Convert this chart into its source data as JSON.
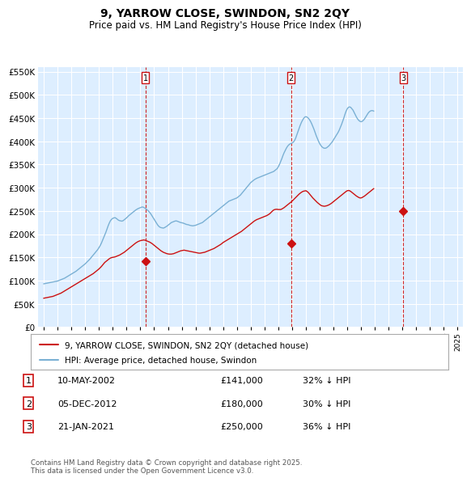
{
  "title": "9, YARROW CLOSE, SWINDON, SN2 2QY",
  "subtitle": "Price paid vs. HM Land Registry's House Price Index (HPI)",
  "background_color": "#ffffff",
  "plot_bg_color": "#ddeeff",
  "legend_label_red": "9, YARROW CLOSE, SWINDON, SN2 2QY (detached house)",
  "legend_label_blue": "HPI: Average price, detached house, Swindon",
  "footer": "Contains HM Land Registry data © Crown copyright and database right 2025.\nThis data is licensed under the Open Government Licence v3.0.",
  "transactions": [
    {
      "num": 1,
      "date": "10-MAY-2002",
      "price": "£141,000",
      "pct": "32% ↓ HPI",
      "year": 2002.36,
      "price_val": 141000
    },
    {
      "num": 2,
      "date": "05-DEC-2012",
      "price": "£180,000",
      "pct": "30% ↓ HPI",
      "year": 2012.92,
      "price_val": 180000
    },
    {
      "num": 3,
      "date": "21-JAN-2021",
      "price": "£250,000",
      "pct": "36% ↓ HPI",
      "year": 2021.06,
      "price_val": 250000
    }
  ],
  "hpi_y_monthly": [
    93000,
    93500,
    94000,
    94500,
    95000,
    95500,
    96000,
    96500,
    97000,
    97500,
    98000,
    98500,
    99000,
    100000,
    101000,
    102000,
    103000,
    104000,
    105000,
    106500,
    108000,
    109500,
    111000,
    112500,
    114000,
    115500,
    117000,
    118500,
    120000,
    122000,
    124000,
    126000,
    128000,
    130000,
    132000,
    134000,
    136000,
    138500,
    141000,
    143500,
    146000,
    149000,
    152000,
    155000,
    158000,
    161000,
    164000,
    167000,
    171000,
    175000,
    180000,
    186000,
    192000,
    198000,
    204000,
    211000,
    218000,
    224000,
    229000,
    232000,
    234000,
    235000,
    235500,
    234000,
    232000,
    230000,
    229000,
    228500,
    228000,
    229000,
    231000,
    233000,
    235000,
    237500,
    240000,
    242000,
    244000,
    246000,
    248000,
    250000,
    252000,
    253500,
    255000,
    256000,
    257000,
    258000,
    258500,
    257500,
    256000,
    254000,
    252000,
    250000,
    247000,
    244000,
    240000,
    236000,
    232000,
    228000,
    224000,
    220000,
    217000,
    215000,
    214000,
    213500,
    213000,
    214000,
    215500,
    217000,
    219000,
    221000,
    223000,
    225000,
    226000,
    227000,
    228000,
    228500,
    228000,
    227000,
    226000,
    225000,
    224500,
    224000,
    223000,
    222000,
    221000,
    220500,
    220000,
    219000,
    218500,
    218000,
    218000,
    218500,
    219000,
    220000,
    221000,
    222000,
    223000,
    224000,
    225000,
    227000,
    229000,
    231000,
    233000,
    235000,
    237000,
    239000,
    241000,
    243000,
    245000,
    247000,
    249000,
    251000,
    253000,
    255000,
    257000,
    259000,
    261000,
    263000,
    265000,
    267000,
    269000,
    271000,
    272000,
    273000,
    274000,
    275000,
    276000,
    277000,
    278000,
    280000,
    282000,
    284000,
    287000,
    290000,
    293000,
    296000,
    299000,
    302000,
    305000,
    308000,
    311000,
    313000,
    315000,
    317000,
    318500,
    320000,
    321000,
    322000,
    323000,
    324000,
    325000,
    326000,
    327000,
    328000,
    329000,
    330000,
    331000,
    332000,
    333000,
    334000,
    335000,
    337000,
    339000,
    341000,
    345000,
    350000,
    356000,
    362000,
    369000,
    375000,
    380000,
    385000,
    389000,
    392000,
    394000,
    395000,
    396000,
    398000,
    401000,
    406000,
    413000,
    420000,
    427000,
    434000,
    440000,
    445000,
    449000,
    452000,
    453000,
    452000,
    450000,
    447000,
    443000,
    438000,
    432000,
    426000,
    419000,
    412000,
    406000,
    400000,
    395000,
    391000,
    388000,
    386000,
    385000,
    385000,
    386000,
    388000,
    390000,
    393000,
    396000,
    399000,
    403000,
    407000,
    411000,
    415000,
    419000,
    424000,
    430000,
    436000,
    443000,
    450000,
    458000,
    465000,
    470000,
    473000,
    474000,
    473000,
    470000,
    467000,
    462000,
    457000,
    452000,
    448000,
    445000,
    443000,
    442000,
    443000,
    445000,
    448000,
    452000,
    456000,
    460000,
    463000,
    465000,
    466000,
    466000,
    465000
  ],
  "price_y_monthly": [
    62000,
    62500,
    63000,
    63500,
    64000,
    64500,
    65000,
    65500,
    66000,
    67000,
    68000,
    69000,
    70000,
    71000,
    72000,
    73000,
    74500,
    76000,
    77500,
    79000,
    80500,
    82000,
    83500,
    85000,
    86500,
    88000,
    89500,
    91000,
    92500,
    94000,
    95500,
    97000,
    98500,
    100000,
    101500,
    103000,
    104500,
    106000,
    107500,
    109000,
    110500,
    112000,
    113500,
    115000,
    117000,
    119000,
    121000,
    123000,
    125000,
    127500,
    130000,
    133000,
    136000,
    139000,
    141000,
    143000,
    145000,
    147000,
    148500,
    149500,
    150000,
    150500,
    151000,
    152000,
    153000,
    154000,
    155000,
    156500,
    158000,
    159500,
    161000,
    163000,
    165000,
    167000,
    169000,
    171000,
    173000,
    175000,
    177000,
    179000,
    181000,
    182500,
    184000,
    185000,
    186000,
    186500,
    187000,
    187500,
    187000,
    186000,
    185000,
    184000,
    183000,
    181500,
    180000,
    178000,
    176000,
    174000,
    172000,
    170000,
    168000,
    166000,
    164000,
    162500,
    161000,
    160000,
    159000,
    158000,
    157500,
    157000,
    157000,
    157000,
    157500,
    158000,
    159000,
    160000,
    161000,
    162000,
    163000,
    164000,
    164500,
    165000,
    165500,
    165000,
    164500,
    164000,
    163500,
    163000,
    162500,
    162000,
    161500,
    161000,
    160500,
    160000,
    159500,
    159000,
    159000,
    159500,
    160000,
    160500,
    161000,
    162000,
    163000,
    164000,
    165000,
    166000,
    167000,
    168000,
    169000,
    170500,
    172000,
    173500,
    175000,
    176500,
    178000,
    180000,
    182000,
    183500,
    185000,
    186500,
    188000,
    189500,
    191000,
    192500,
    194000,
    195500,
    197000,
    198500,
    200000,
    201500,
    203000,
    204500,
    206000,
    208000,
    210000,
    212000,
    214000,
    216000,
    218000,
    220000,
    222000,
    224000,
    226000,
    228000,
    229500,
    231000,
    232000,
    233000,
    234000,
    235000,
    236000,
    237000,
    238000,
    239000,
    240000,
    241500,
    243000,
    245000,
    247500,
    250000,
    252000,
    253000,
    253500,
    253500,
    253000,
    253000,
    253000,
    254000,
    255500,
    257000,
    259000,
    261000,
    263000,
    265000,
    267000,
    269000,
    271000,
    273500,
    276000,
    278500,
    281000,
    283500,
    286000,
    288000,
    290000,
    291500,
    292500,
    293000,
    293500,
    292000,
    290000,
    287000,
    284000,
    281000,
    278000,
    275500,
    273000,
    270500,
    268000,
    266000,
    264000,
    262000,
    261000,
    260500,
    260000,
    260500,
    261000,
    262000,
    263000,
    264500,
    266000,
    268000,
    270000,
    272000,
    274000,
    276000,
    278000,
    280000,
    282000,
    284000,
    286000,
    288000,
    290000,
    292000,
    293500,
    294000,
    293500,
    292000,
    290000,
    288000,
    286000,
    284000,
    282000,
    280500,
    279000,
    278000,
    278000,
    279000,
    280500,
    282000,
    284000,
    286000,
    288000,
    290000,
    292000,
    294000,
    296000,
    298000
  ],
  "ylim": [
    0,
    560000
  ],
  "yticks": [
    0,
    50000,
    100000,
    150000,
    200000,
    250000,
    300000,
    350000,
    400000,
    450000,
    500000,
    550000
  ],
  "start_year": 1995,
  "num_months": 288,
  "xtick_years": [
    1995,
    1996,
    1997,
    1998,
    1999,
    2000,
    2001,
    2002,
    2003,
    2004,
    2005,
    2006,
    2007,
    2008,
    2009,
    2010,
    2011,
    2012,
    2013,
    2014,
    2015,
    2016,
    2017,
    2018,
    2019,
    2020,
    2021,
    2022,
    2023,
    2024,
    2025
  ]
}
